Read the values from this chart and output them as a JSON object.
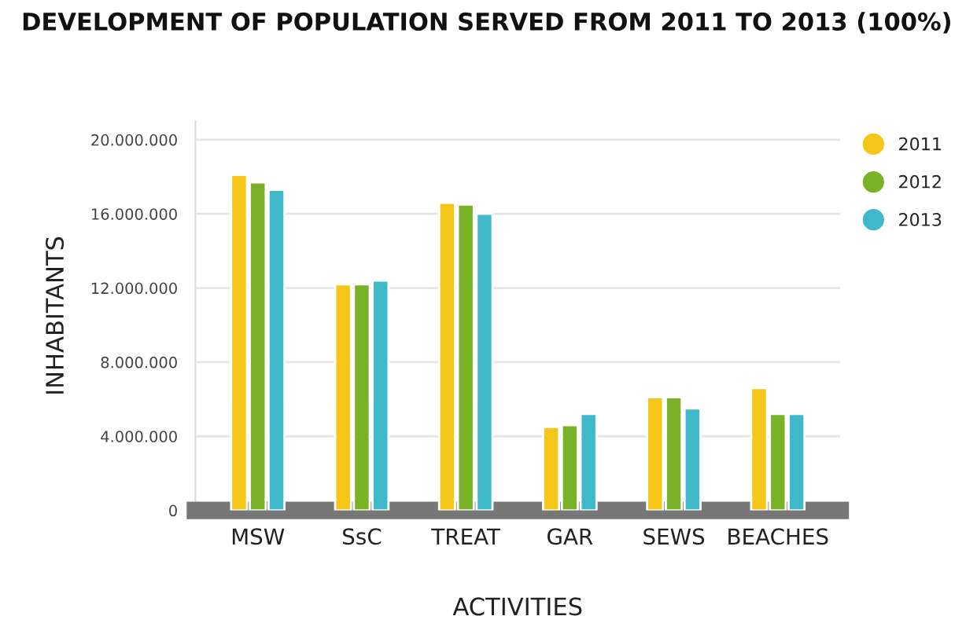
{
  "chart_data": {
    "type": "bar",
    "title": "DEVELOPMENT OF POPULATION SERVED FROM 2011 TO 2013 (100%)",
    "xlabel": "ACTIVITIES",
    "ylabel": "INHABITANTS",
    "categories": [
      "MSW",
      "SsC",
      "TREAT",
      "GAR",
      "SEWS",
      "BEACHES"
    ],
    "series": [
      {
        "name": "2011",
        "color": "#f5c518",
        "values": [
          18100000,
          12200000,
          16600000,
          4500000,
          6100000,
          6600000
        ]
      },
      {
        "name": "2012",
        "color": "#7ab227",
        "values": [
          17700000,
          12200000,
          16500000,
          4600000,
          6100000,
          5200000
        ]
      },
      {
        "name": "2013",
        "color": "#3fb8c9",
        "values": [
          17300000,
          12400000,
          16000000,
          5200000,
          5500000,
          5200000
        ]
      }
    ],
    "ylim": [
      0,
      21000000
    ],
    "yticks": [
      {
        "value": 0,
        "label": "0"
      },
      {
        "value": 4000000,
        "label": "4.000.000"
      },
      {
        "value": 8000000,
        "label": "8.000.000"
      },
      {
        "value": 12000000,
        "label": "12.000.000"
      },
      {
        "value": 16000000,
        "label": "16.000.000"
      },
      {
        "value": 20000000,
        "label": "20.000.000"
      }
    ],
    "grid": "y",
    "legend": "top right"
  }
}
